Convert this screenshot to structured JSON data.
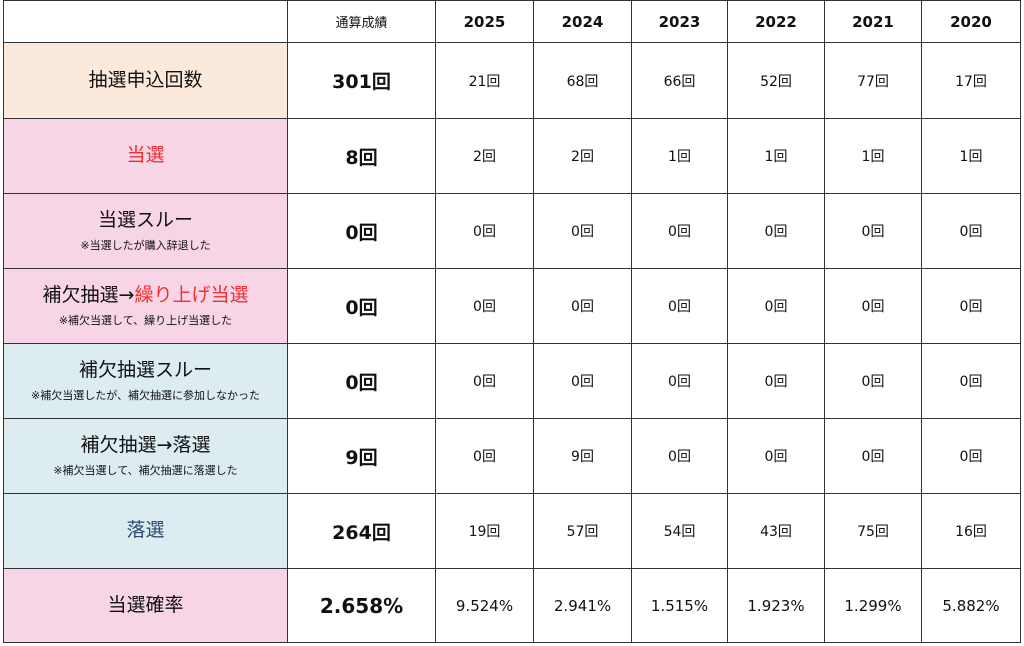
{
  "header": {
    "blank": "",
    "total_label": "通算成績",
    "years": [
      "2025",
      "2024",
      "2023",
      "2022",
      "2021",
      "2020"
    ]
  },
  "rows": [
    {
      "label": "抽選申込回数",
      "label_accent": "",
      "note": "",
      "total": "301回",
      "values": [
        "21回",
        "68回",
        "66回",
        "52回",
        "77回",
        "17回"
      ]
    },
    {
      "label": "",
      "label_accent": "当選",
      "note": "",
      "total": "8回",
      "values": [
        "2回",
        "2回",
        "1回",
        "1回",
        "1回",
        "1回"
      ]
    },
    {
      "label": "当選スルー",
      "label_accent": "",
      "note": "※当選したが購入辞退した",
      "total": "0回",
      "values": [
        "0回",
        "0回",
        "0回",
        "0回",
        "0回",
        "0回"
      ]
    },
    {
      "label": "補欠抽選→",
      "label_accent": "繰り上げ当選",
      "note": "※補欠当選して、繰り上げ当選した",
      "total": "0回",
      "values": [
        "0回",
        "0回",
        "0回",
        "0回",
        "0回",
        "0回"
      ]
    },
    {
      "label": "補欠抽選スルー",
      "label_accent": "",
      "note": "※補欠当選したが、補欠抽選に参加しなかった",
      "total": "0回",
      "values": [
        "0回",
        "0回",
        "0回",
        "0回",
        "0回",
        "0回"
      ]
    },
    {
      "label": "補欠抽選→落選",
      "label_accent": "",
      "note": "※補欠当選して、補欠抽選に落選した",
      "total": "9回",
      "values": [
        "0回",
        "9回",
        "0回",
        "0回",
        "0回",
        "0回"
      ]
    },
    {
      "label": "落選",
      "label_accent": "",
      "note": "",
      "total": "264回",
      "values": [
        "19回",
        "57回",
        "54回",
        "43回",
        "75回",
        "16回"
      ]
    },
    {
      "label": "当選確率",
      "label_accent": "",
      "note": "",
      "total": "2.658%",
      "values": [
        "9.524%",
        "2.941%",
        "1.515%",
        "1.923%",
        "1.299%",
        "5.882%"
      ]
    }
  ],
  "colors": {
    "peach": "#fbe9dc",
    "pink": "#f8d5e6",
    "blue": "#dcecf1",
    "accent_red": "#ee2f2f",
    "navy": "#2b4a72"
  }
}
